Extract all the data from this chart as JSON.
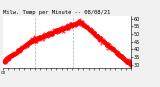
{
  "title": "Milw. Temp per Minute -- 08/08/21",
  "line_color": "#ff0000",
  "bg_color": "#f0f0f0",
  "plot_bg_color": "#ffffff",
  "grid_color": "#cccccc",
  "vline_color": "#aaaaaa",
  "figsize": [
    1.6,
    0.87
  ],
  "dpi": 100,
  "ylim": [
    28,
    62
  ],
  "yticks": [
    30,
    35,
    40,
    45,
    50,
    55,
    60
  ],
  "vlines": [
    360,
    780
  ],
  "num_points": 1440,
  "temperature_curve": {
    "start": 32,
    "plateau1": 42,
    "plateau1_at": 0.27,
    "plateau2": 46,
    "plateau2_at": 0.38,
    "peak": 58,
    "peak_at": 0.6,
    "end": 30,
    "noise": 0.8
  },
  "title_fontsize": 4.0,
  "tick_fontsize": 3.5,
  "linewidth": 0.5,
  "markersize": 0.8
}
